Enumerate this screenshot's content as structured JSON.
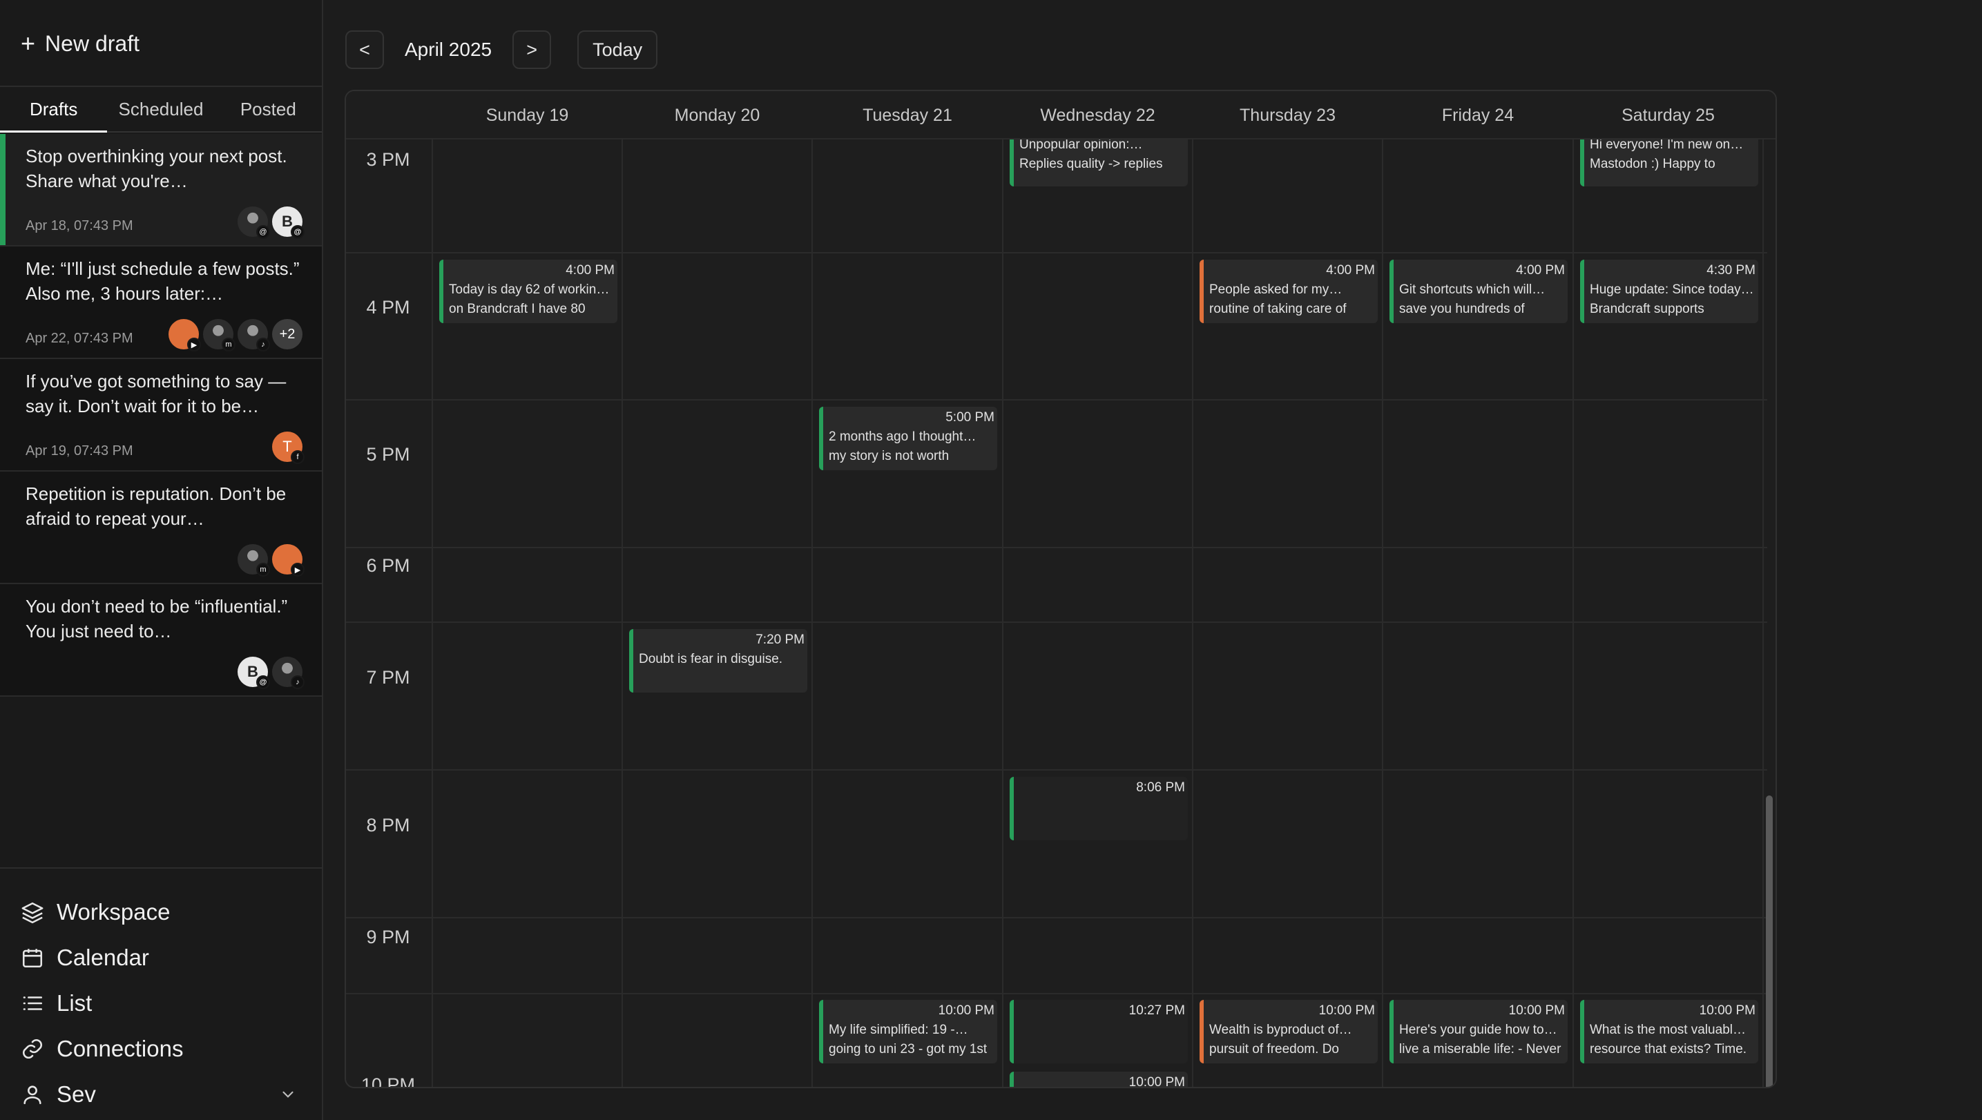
{
  "sidebar": {
    "new_draft": "New draft",
    "tabs": [
      {
        "label": "Drafts",
        "active": true
      },
      {
        "label": "Scheduled",
        "active": false
      },
      {
        "label": "Posted",
        "active": false
      }
    ],
    "drafts": [
      {
        "text": "Stop overthinking your next post. Share what you're…",
        "date": "Apr 18, 07:43 PM"
      },
      {
        "text": "Me: “I'll just schedule a few posts.” Also me, 3 hours later:…",
        "date": "Apr 22, 07:43 PM",
        "extra": "+2"
      },
      {
        "text": "If you’ve got something to say — say it. Don’t wait for it to be…",
        "date": "Apr 19, 07:43 PM",
        "avatar_letter": "T"
      },
      {
        "text": "Repetition is reputation. Don’t be afraid to repeat your…",
        "date": ""
      },
      {
        "text": "You don’t need to be “influential.” You just need to…",
        "date": ""
      }
    ],
    "nav": [
      {
        "label": "Workspace",
        "icon": "layers-icon"
      },
      {
        "label": "Calendar",
        "icon": "calendar-icon"
      },
      {
        "label": "List",
        "icon": "list-icon"
      },
      {
        "label": "Connections",
        "icon": "link-icon"
      },
      {
        "label": "Sev",
        "icon": "user-icon"
      }
    ]
  },
  "header": {
    "prev": "<",
    "month": "April 2025",
    "next": ">",
    "today": "Today"
  },
  "calendar": {
    "days": [
      "Sunday 19",
      "Monday 20",
      "Tuesday 21",
      "Wednesday 22",
      "Thursday 23",
      "Friday 24",
      "Saturday 25"
    ],
    "hours": [
      "3 PM",
      "4 PM",
      "5 PM",
      "6 PM",
      "7 PM",
      "8 PM",
      "9 PM",
      "10 PM"
    ],
    "events": [
      {
        "day": "Wednesday 22",
        "time": "",
        "line1": "Unpopular opinion:…",
        "line2": "Replies quality -> replies"
      },
      {
        "day": "Saturday 25",
        "time": "",
        "line1": "Hi everyone! I'm new on…",
        "line2": "Mastodon :) Happy to"
      },
      {
        "day": "Sunday 19",
        "time": "4:00 PM",
        "line1": "Today is day 62 of workin…",
        "line2": "on Brandcraft I have 80"
      },
      {
        "day": "Thursday 23",
        "time": "4:00 PM",
        "line1": "People asked for my…",
        "line2": "routine of taking care of"
      },
      {
        "day": "Friday 24",
        "time": "4:00 PM",
        "line1": "Git shortcuts which will…",
        "line2": "save you hundreds of"
      },
      {
        "day": "Saturday 25",
        "time": "4:30 PM",
        "line1": "Huge update: Since today…",
        "line2": "Brandcraft supports"
      },
      {
        "day": "Tuesday 21",
        "time": "5:00 PM",
        "line1": "2 months ago I thought…",
        "line2": "my story is not worth"
      },
      {
        "day": "Monday 20",
        "time": "7:20 PM",
        "line1": "Doubt is fear in disguise.",
        "line2": ""
      },
      {
        "day": "Wednesday 22",
        "time": "8:06 PM",
        "line1": "",
        "line2": ""
      },
      {
        "day": "Tuesday 21",
        "time": "10:00 PM",
        "line1": "My life simplified: 19 -…",
        "line2": "going to uni 23 - got my 1st"
      },
      {
        "day": "Wednesday 22",
        "time": "10:27 PM",
        "line1": "",
        "line2": ""
      },
      {
        "day": "Thursday 23",
        "time": "10:00 PM",
        "line1": "Wealth is byproduct of…",
        "line2": "pursuit of freedom. Do"
      },
      {
        "day": "Friday 24",
        "time": "10:00 PM",
        "line1": "Here's your guide how to…",
        "line2": "live a miserable life: - Never"
      },
      {
        "day": "Saturday 25",
        "time": "10:00 PM",
        "line1": "What is the most valuabl…",
        "line2": "resource that exists? Time."
      },
      {
        "day": "Wednesday 22",
        "time": "10:00 PM",
        "line1": "",
        "line2": ""
      }
    ]
  },
  "colors": {
    "accent_green": "#27a05a",
    "accent_orange": "#e0703a"
  }
}
